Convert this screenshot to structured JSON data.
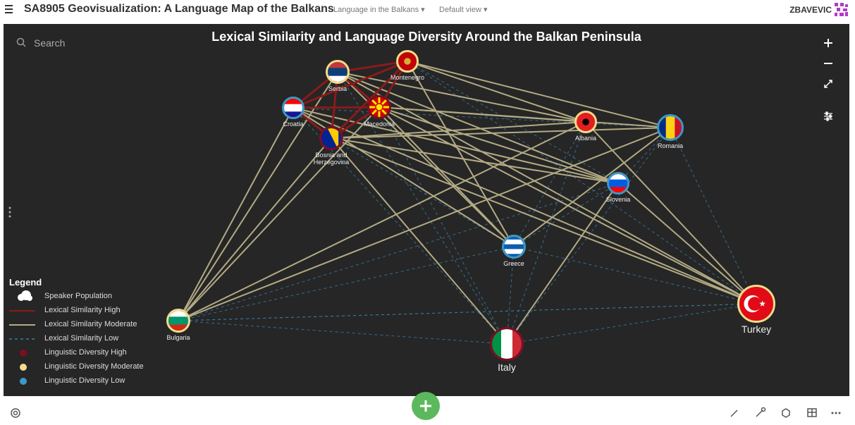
{
  "header": {
    "title": "SA8905 Geovisualization: A Language Map of the Balkans",
    "map_menu": "Language in the Balkans",
    "view_menu": "Default view",
    "user": "ZBAVEVIC"
  },
  "map": {
    "title": "Lexical Similarity and Language Diversity Around the Balkan Peninsula",
    "search_placeholder": "Search",
    "nodes": [
      {
        "label": "Serbia"
      },
      {
        "label": "Montenegro"
      },
      {
        "label": "Croatia"
      },
      {
        "label": "Macedonia"
      },
      {
        "label": "Bosnia and Herzegovina"
      },
      {
        "label": "Albania"
      },
      {
        "label": "Romania"
      },
      {
        "label": "Slovenia"
      },
      {
        "label": "Greece"
      },
      {
        "label": "Bulgaria"
      },
      {
        "label": "Italy"
      },
      {
        "label": "Turkey"
      }
    ],
    "legend": {
      "title": "Legend",
      "items": [
        {
          "label": "Speaker Population",
          "color": "#ffffff"
        },
        {
          "label": "Lexical Similarity High",
          "color": "#8b1a1a"
        },
        {
          "label": "Lexical Similarity Moderate",
          "color": "#b3ab84"
        },
        {
          "label": "Lexical Similarity Low",
          "color": "#3b7ea6"
        },
        {
          "label": "Linguistic Diversity High",
          "color": "#7a0f24"
        },
        {
          "label": "Linguistic Diversity Moderate",
          "color": "#f3dc8a"
        },
        {
          "label": "Linguistic Diversity Low",
          "color": "#3d98c8"
        }
      ]
    }
  }
}
